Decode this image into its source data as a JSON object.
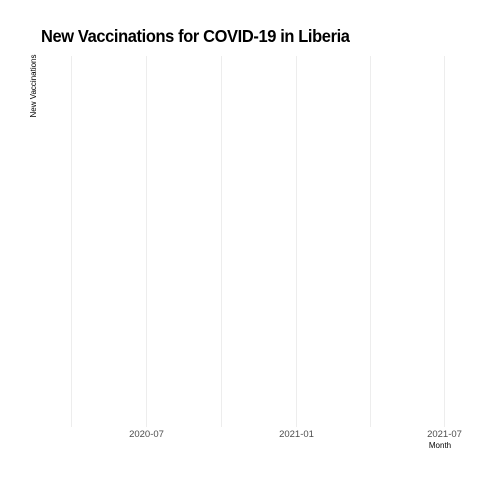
{
  "chart_data": {
    "type": "line",
    "title": "New Vaccinations for COVID-19 in Liberia",
    "xlabel": "Month",
    "ylabel": "New Vaccinations",
    "x_ticks": [
      "2020-07",
      "2021-01",
      "2021-07"
    ],
    "series": [],
    "grid": true,
    "grid_color": "#ebebeb",
    "text_color": "#4d4d4d"
  }
}
